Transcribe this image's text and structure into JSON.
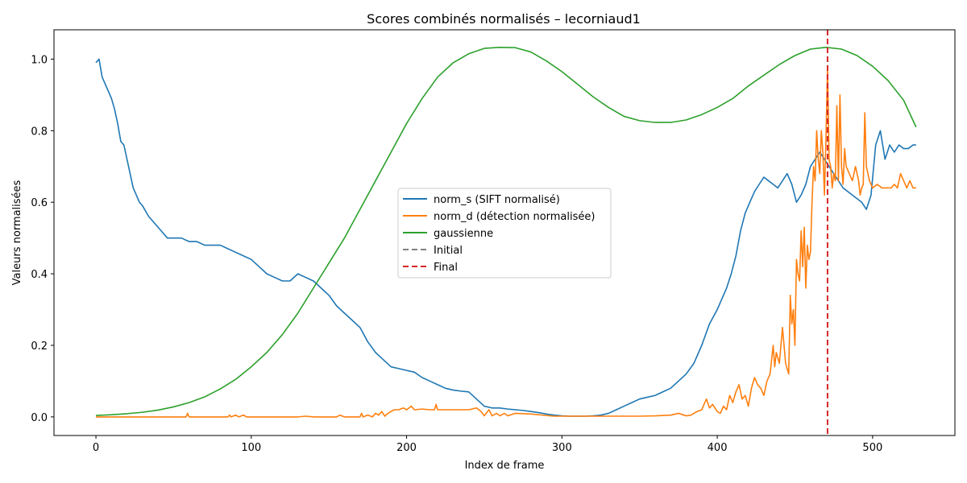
{
  "chart_data": {
    "type": "line",
    "title": "Scores combinés normalisés – lecorniaud1",
    "xlabel": "Index de frame",
    "ylabel": "Valeurs normalisées",
    "xlim": [
      -27,
      553
    ],
    "ylim": [
      -0.052,
      1.082
    ],
    "xticks": [
      0,
      100,
      200,
      300,
      400,
      500
    ],
    "yticks": [
      0.0,
      0.2,
      0.4,
      0.6,
      0.8,
      1.0
    ],
    "grid": false,
    "legend": "center",
    "series": [
      {
        "name": "norm_s (SIFT normalisé)",
        "color": "#1f77b4",
        "x": [
          0,
          2,
          4,
          6,
          8,
          10,
          12,
          14,
          16,
          18,
          20,
          22,
          24,
          26,
          28,
          30,
          34,
          38,
          42,
          46,
          50,
          55,
          60,
          65,
          70,
          75,
          80,
          85,
          90,
          95,
          100,
          105,
          110,
          115,
          120,
          125,
          130,
          135,
          140,
          145,
          150,
          155,
          160,
          165,
          170,
          175,
          180,
          185,
          190,
          195,
          200,
          205,
          210,
          215,
          220,
          225,
          230,
          235,
          240,
          245,
          250,
          255,
          260,
          265,
          270,
          275,
          280,
          285,
          290,
          295,
          300,
          305,
          310,
          315,
          320,
          325,
          330,
          335,
          340,
          345,
          350,
          355,
          360,
          365,
          370,
          375,
          380,
          385,
          390,
          395,
          400,
          403,
          406,
          409,
          412,
          415,
          418,
          421,
          424,
          427,
          430,
          433,
          436,
          439,
          442,
          445,
          448,
          451,
          454,
          457,
          460,
          463,
          466,
          469,
          472,
          475,
          478,
          481,
          484,
          487,
          490,
          493,
          496,
          499,
          502,
          505,
          508,
          511,
          514,
          517,
          520,
          523,
          526,
          528
        ],
        "values": [
          0.99,
          1.0,
          0.95,
          0.93,
          0.91,
          0.89,
          0.86,
          0.82,
          0.77,
          0.76,
          0.72,
          0.68,
          0.64,
          0.62,
          0.6,
          0.59,
          0.56,
          0.54,
          0.52,
          0.5,
          0.5,
          0.5,
          0.49,
          0.49,
          0.48,
          0.48,
          0.48,
          0.47,
          0.46,
          0.45,
          0.44,
          0.42,
          0.4,
          0.39,
          0.38,
          0.38,
          0.4,
          0.39,
          0.38,
          0.36,
          0.34,
          0.31,
          0.29,
          0.27,
          0.25,
          0.21,
          0.18,
          0.16,
          0.14,
          0.135,
          0.13,
          0.125,
          0.11,
          0.1,
          0.09,
          0.08,
          0.075,
          0.072,
          0.07,
          0.05,
          0.03,
          0.025,
          0.025,
          0.022,
          0.02,
          0.018,
          0.015,
          0.012,
          0.008,
          0.005,
          0.003,
          0.002,
          0.002,
          0.002,
          0.003,
          0.005,
          0.01,
          0.02,
          0.03,
          0.04,
          0.05,
          0.055,
          0.06,
          0.07,
          0.08,
          0.1,
          0.12,
          0.15,
          0.2,
          0.26,
          0.3,
          0.33,
          0.36,
          0.4,
          0.45,
          0.52,
          0.57,
          0.6,
          0.63,
          0.65,
          0.67,
          0.66,
          0.65,
          0.64,
          0.66,
          0.68,
          0.65,
          0.6,
          0.62,
          0.65,
          0.7,
          0.72,
          0.74,
          0.72,
          0.7,
          0.68,
          0.66,
          0.64,
          0.63,
          0.62,
          0.61,
          0.6,
          0.58,
          0.62,
          0.76,
          0.8,
          0.72,
          0.76,
          0.74,
          0.76,
          0.75,
          0.75,
          0.76,
          0.76
        ]
      },
      {
        "name": "norm_d (détection normalisée)",
        "color": "#ff7f0e",
        "x": [
          0,
          50,
          58,
          59,
          60,
          62,
          85,
          86,
          87,
          90,
          92,
          95,
          97,
          100,
          130,
          135,
          140,
          155,
          157,
          160,
          170,
          171,
          172,
          175,
          178,
          180,
          182,
          184,
          186,
          188,
          190,
          192,
          195,
          198,
          200,
          203,
          205,
          210,
          215,
          218,
          219,
          220,
          225,
          230,
          235,
          240,
          245,
          248,
          250,
          253,
          255,
          258,
          260,
          263,
          265,
          270,
          280,
          290,
          295,
          300,
          340,
          350,
          360,
          370,
          375,
          380,
          383,
          385,
          387,
          390,
          393,
          395,
          397,
          400,
          402,
          404,
          406,
          408,
          410,
          412,
          414,
          416,
          418,
          420,
          422,
          424,
          426,
          428,
          430,
          432,
          434,
          436,
          437,
          438,
          440,
          442,
          444,
          446,
          447,
          448,
          449,
          450,
          451,
          452,
          453,
          454,
          455,
          456,
          457,
          458,
          459,
          460,
          461,
          462,
          463,
          464,
          465,
          466,
          467,
          468,
          469,
          470,
          471,
          472,
          473,
          474,
          475,
          476,
          477,
          478,
          479,
          480,
          481,
          482,
          483,
          485,
          487,
          489,
          491,
          492,
          493,
          494,
          495,
          496,
          498,
          500,
          503,
          506,
          509,
          512,
          514,
          516,
          518,
          520,
          522,
          524,
          526,
          528
        ],
        "values": [
          0,
          0,
          0,
          0.01,
          0,
          0,
          0,
          0.005,
          0,
          0.005,
          0,
          0.005,
          0,
          0,
          0,
          0.002,
          0,
          0,
          0.005,
          0,
          0,
          0.01,
          0,
          0.005,
          0,
          0.01,
          0.005,
          0.015,
          0.002,
          0.01,
          0.015,
          0.02,
          0.02,
          0.025,
          0.02,
          0.03,
          0.02,
          0.022,
          0.02,
          0.02,
          0.035,
          0.02,
          0.02,
          0.02,
          0.02,
          0.02,
          0.025,
          0.015,
          0.003,
          0.02,
          0.003,
          0.01,
          0.003,
          0.01,
          0.003,
          0.01,
          0.008,
          0.004,
          0.002,
          0.002,
          0.002,
          0.002,
          0.003,
          0.005,
          0.01,
          0.003,
          0.005,
          0.01,
          0.015,
          0.02,
          0.05,
          0.025,
          0.035,
          0.015,
          0.01,
          0.03,
          0.02,
          0.06,
          0.04,
          0.07,
          0.09,
          0.05,
          0.06,
          0.03,
          0.08,
          0.11,
          0.09,
          0.08,
          0.06,
          0.1,
          0.12,
          0.2,
          0.14,
          0.18,
          0.15,
          0.25,
          0.15,
          0.12,
          0.34,
          0.26,
          0.3,
          0.2,
          0.44,
          0.4,
          0.38,
          0.52,
          0.42,
          0.53,
          0.36,
          0.48,
          0.44,
          0.46,
          0.6,
          0.7,
          0.66,
          0.8,
          0.72,
          0.68,
          0.8,
          0.74,
          0.62,
          0.78,
          0.98,
          0.72,
          0.7,
          0.64,
          0.68,
          0.66,
          0.87,
          0.66,
          0.9,
          0.7,
          0.65,
          0.75,
          0.7,
          0.68,
          0.66,
          0.7,
          0.66,
          0.62,
          0.64,
          0.65,
          0.85,
          0.7,
          0.66,
          0.64,
          0.65,
          0.64,
          0.64,
          0.64,
          0.65,
          0.64,
          0.68,
          0.66,
          0.64,
          0.66,
          0.64,
          0.64
        ]
      },
      {
        "name": "gaussienne",
        "color": "#2ca02c",
        "x": [
          0,
          10,
          20,
          30,
          40,
          50,
          60,
          70,
          80,
          90,
          100,
          110,
          120,
          130,
          140,
          150,
          160,
          170,
          180,
          190,
          200,
          210,
          220,
          230,
          240,
          250,
          260,
          270,
          280,
          290,
          300,
          310,
          320,
          330,
          340,
          350,
          360,
          370,
          380,
          390,
          400,
          410,
          420,
          430,
          440,
          450,
          460,
          470,
          480,
          490,
          500,
          510,
          520,
          528
        ],
        "values": [
          0.004,
          0.006,
          0.009,
          0.013,
          0.019,
          0.028,
          0.04,
          0.056,
          0.078,
          0.105,
          0.14,
          0.18,
          0.23,
          0.29,
          0.36,
          0.43,
          0.5,
          0.58,
          0.66,
          0.74,
          0.82,
          0.89,
          0.95,
          0.99,
          1.015,
          1.03,
          1.033,
          1.032,
          1.02,
          0.995,
          0.965,
          0.93,
          0.895,
          0.865,
          0.84,
          0.828,
          0.823,
          0.823,
          0.83,
          0.845,
          0.865,
          0.89,
          0.925,
          0.955,
          0.985,
          1.01,
          1.028,
          1.033,
          1.028,
          1.01,
          0.98,
          0.94,
          0.885,
          0.81
        ]
      },
      {
        "name": "Initial",
        "color": "#808080",
        "dashed": true,
        "x": [],
        "values": []
      },
      {
        "name": "Final",
        "color": "#d62728",
        "dashed": true,
        "vline": 471,
        "x": [],
        "values": []
      }
    ]
  }
}
